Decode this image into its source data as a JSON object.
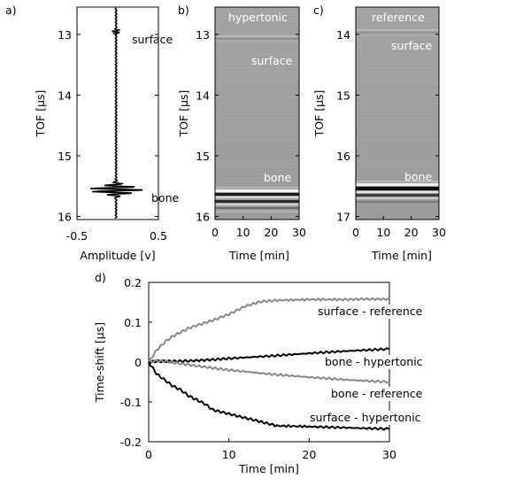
{
  "chart_data": [
    {
      "panel_label": "a)",
      "type": "line",
      "title": "",
      "xlabel": "Amplitude [v]",
      "ylabel": "TOF  [µs]",
      "xlim": [
        -0.5,
        0.5
      ],
      "ylim": [
        12.55,
        16.05
      ],
      "x_ticks": [
        "-0.5",
        "0.5"
      ],
      "y_ticks": [
        "13",
        "14",
        "15",
        "16"
      ],
      "annotations": [
        "surface",
        "bone"
      ],
      "series": [
        {
          "description": "A-scan waveform",
          "x": [
            0,
            0.05,
            -0.04,
            0.04,
            -0.03,
            0,
            0.1,
            -0.15,
            0.2,
            -0.25,
            0.35,
            -0.22,
            0.15,
            -0.1,
            0.05,
            0
          ],
          "y": [
            12.9,
            12.93,
            12.96,
            12.99,
            13.02,
            15.35,
            15.42,
            15.46,
            15.5,
            15.55,
            15.59,
            15.63,
            15.67,
            15.71,
            15.78,
            15.9
          ]
        }
      ]
    },
    {
      "panel_label": "b)",
      "type": "heatmap",
      "xlabel": "Time [min]",
      "ylabel": "TOF  [µs]",
      "xlim": [
        0,
        30
      ],
      "ylim": [
        12.55,
        16.05
      ],
      "x_ticks": [
        "0",
        "10",
        "20",
        "30"
      ],
      "y_ticks": [
        "13",
        "14",
        "15",
        "16"
      ],
      "annotations": [
        "hypertonic",
        "surface",
        "bone"
      ]
    },
    {
      "panel_label": "c)",
      "type": "heatmap",
      "xlabel": "Time [min]",
      "ylabel": "TOF  [µs]",
      "xlim": [
        0,
        30
      ],
      "ylim": [
        13.55,
        17.05
      ],
      "x_ticks": [
        "0",
        "10",
        "20",
        "30"
      ],
      "y_ticks": [
        "14",
        "15",
        "16",
        "17"
      ],
      "annotations": [
        "reference",
        "surface",
        "bone"
      ]
    },
    {
      "panel_label": "d)",
      "type": "line",
      "xlabel": "Time [min]",
      "ylabel": "Time-shift  [µs]",
      "xlim": [
        0,
        30
      ],
      "ylim": [
        -0.2,
        0.2
      ],
      "x_ticks": [
        "0",
        "10",
        "20",
        "30"
      ],
      "y_ticks": [
        "0.2",
        "0.1",
        "0",
        "-0.1",
        "-0.2"
      ],
      "series": [
        {
          "name": "surface - reference",
          "color": "#888888",
          "x": [
            0,
            1,
            2,
            3,
            4,
            5,
            6,
            8,
            10,
            12,
            14,
            16,
            20,
            24,
            27,
            30
          ],
          "y": [
            0,
            0.03,
            0.05,
            0.065,
            0.075,
            0.085,
            0.092,
            0.105,
            0.12,
            0.14,
            0.152,
            0.155,
            0.157,
            0.157,
            0.158,
            0.158
          ]
        },
        {
          "name": "bone - hypertonic",
          "color": "#000000",
          "x": [
            0,
            1,
            2,
            3,
            5,
            8,
            10,
            15,
            20,
            25,
            30
          ],
          "y": [
            0,
            0.002,
            0.002,
            0.002,
            0.003,
            0.006,
            0.009,
            0.015,
            0.022,
            0.028,
            0.033
          ]
        },
        {
          "name": "bone - reference",
          "color": "#888888",
          "x": [
            0,
            1,
            2,
            3,
            5,
            8,
            10,
            15,
            20,
            25,
            30
          ],
          "y": [
            0,
            0.003,
            0.002,
            -0.001,
            -0.007,
            -0.015,
            -0.02,
            -0.03,
            -0.038,
            -0.045,
            -0.05
          ]
        },
        {
          "name": "surface - hypertonic",
          "color": "#000000",
          "x": [
            0,
            1,
            2,
            3,
            4,
            5,
            6,
            7,
            8,
            10,
            12,
            14,
            16,
            20,
            25,
            30
          ],
          "y": [
            0,
            -0.03,
            -0.045,
            -0.06,
            -0.07,
            -0.085,
            -0.095,
            -0.105,
            -0.12,
            -0.13,
            -0.14,
            -0.15,
            -0.16,
            -0.162,
            -0.165,
            -0.168
          ]
        }
      ]
    }
  ]
}
